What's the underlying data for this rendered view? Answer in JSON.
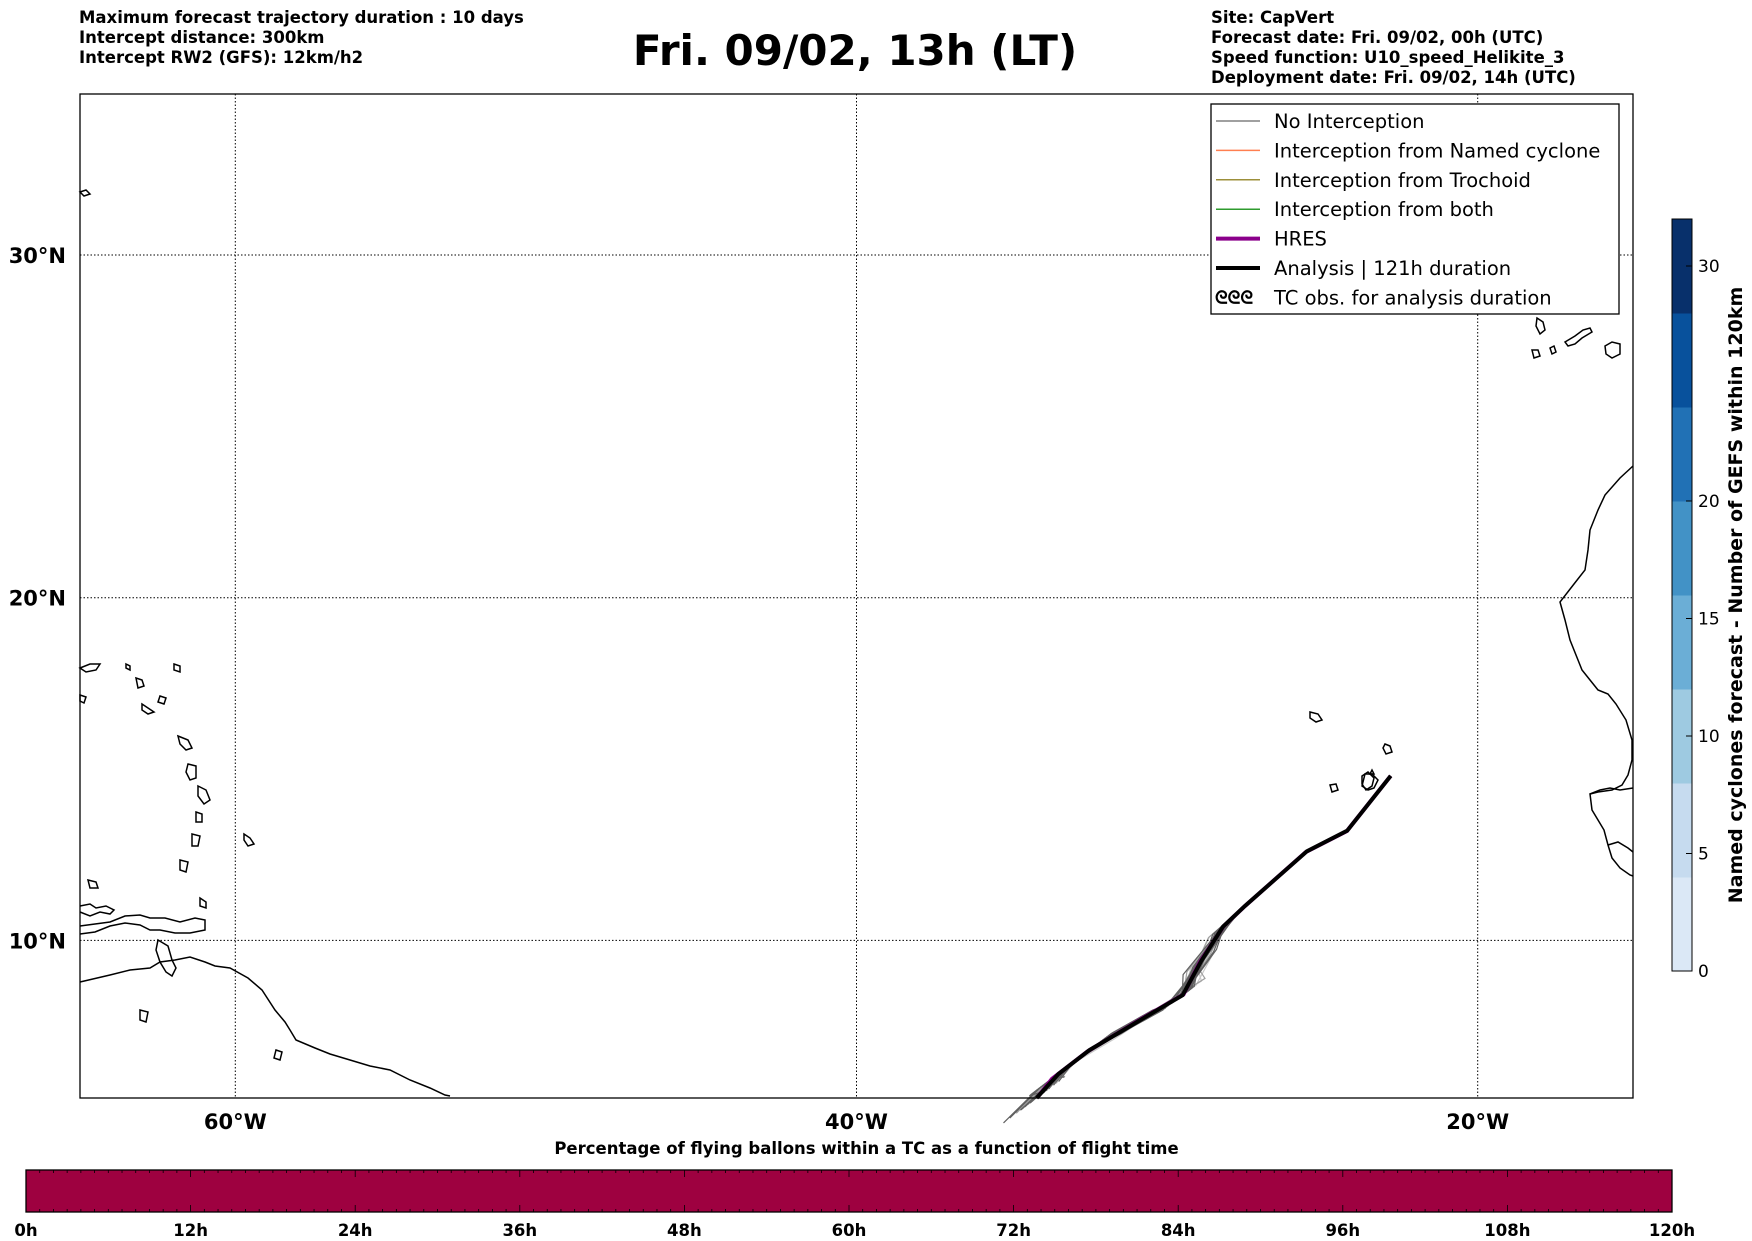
{
  "title": "Fri. 09/02, 13h (LT)",
  "header_left": [
    "Maximum forecast trajectory duration : 10 days",
    "Intercept distance: 300km",
    "Intercept RW2 (GFS):  12km/h2"
  ],
  "header_right": [
    "Site: CapVert",
    "Forecast date: Fri. 09/02, 00h (UTC)",
    "Speed function: U10_speed_Helikite_3",
    "Deployment date: Fri. 09/02, 14h (UTC)"
  ],
  "map": {
    "lon_range": [
      -65,
      -15
    ],
    "lat_range": [
      5.4,
      34.7
    ],
    "lat_ticks": [
      {
        "value": 30,
        "label": "30°N"
      },
      {
        "value": 20,
        "label": "20°N"
      },
      {
        "value": 10,
        "label": "10°N"
      }
    ],
    "lon_ticks": [
      {
        "value": -60,
        "label": "60°W"
      },
      {
        "value": -40,
        "label": "40°W"
      },
      {
        "value": -20,
        "label": "20°W"
      }
    ],
    "grid": true
  },
  "legend": {
    "placement": "top-right",
    "items": [
      {
        "label": "No Interception",
        "color": "#808080",
        "kind": "line"
      },
      {
        "label": "Interception from Named cyclone",
        "color": "#ff7f50",
        "kind": "line"
      },
      {
        "label": "Interception from Trochoid",
        "color": "#9c8f3a",
        "kind": "line"
      },
      {
        "label": "Interception from both",
        "color": "#2e9b2e",
        "kind": "line"
      },
      {
        "label": "HRES",
        "color": "#8b008b",
        "kind": "thick-line"
      },
      {
        "label": "Analysis | 121h duration",
        "color": "#000000",
        "kind": "thick-line"
      },
      {
        "label": "TC obs. for analysis duration",
        "color": "#000000",
        "kind": "tc-symbols"
      }
    ]
  },
  "colorbar_right": {
    "label": "Named cyclones forecast - Number of GEFS within 120km",
    "ticks": [
      0,
      5,
      10,
      15,
      20,
      30
    ],
    "range": [
      0,
      32
    ],
    "colors": [
      "#dbe8f6",
      "#c6dbef",
      "#9ecae1",
      "#6baed6",
      "#4292c6",
      "#2171b5",
      "#08519c",
      "#08306b"
    ]
  },
  "colorbar_bottom": {
    "label": "Percentage of flying ballons within a TC as a function of flight time",
    "ticks": [
      "0h",
      "12h",
      "24h",
      "36h",
      "48h",
      "60h",
      "72h",
      "84h",
      "96h",
      "108h",
      "120h"
    ],
    "color": "#9e0140"
  },
  "trajectory": {
    "start": [
      -22.8,
      14.8
    ],
    "path": [
      [
        -22.8,
        14.8
      ],
      [
        -24.2,
        13.2
      ],
      [
        -25.5,
        12.6
      ],
      [
        -27.5,
        11.0
      ],
      [
        -28.2,
        10.4
      ],
      [
        -28.9,
        9.4
      ],
      [
        -29.5,
        8.4
      ],
      [
        -31.0,
        7.6
      ],
      [
        -32.5,
        6.8
      ],
      [
        -33.5,
        6.1
      ],
      [
        -34.2,
        5.4
      ]
    ]
  }
}
